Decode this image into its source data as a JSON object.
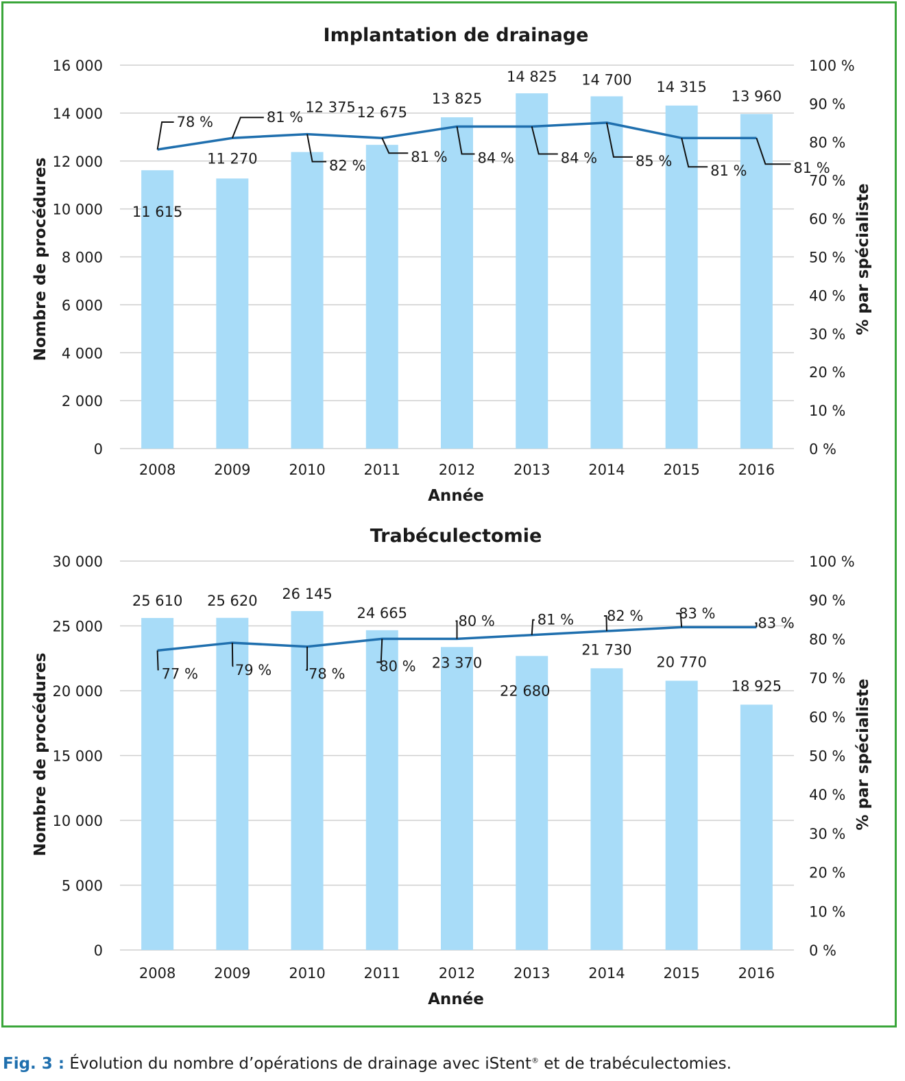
{
  "chart_data": [
    {
      "type": "bar",
      "title": "Implantation de drainage",
      "xlabel": "Année",
      "ylabel": "Nombre de procédures",
      "y2label": "% par spécialiste",
      "categories": [
        "2008",
        "2009",
        "2010",
        "2011",
        "2012",
        "2013",
        "2014",
        "2015",
        "2016"
      ],
      "ylim": [
        0,
        16000
      ],
      "yticks": [
        0,
        2000,
        4000,
        6000,
        8000,
        10000,
        12000,
        14000,
        16000
      ],
      "ytick_labels": [
        "0",
        "2 000",
        "4 000",
        "6 000",
        "8 000",
        "10 000",
        "12 000",
        "14 000",
        "16 000"
      ],
      "y2lim": [
        0,
        100
      ],
      "y2ticks": [
        0,
        10,
        20,
        30,
        40,
        50,
        60,
        70,
        80,
        90,
        100
      ],
      "y2tick_labels": [
        "0 %",
        "10 %",
        "20 %",
        "30 %",
        "40 %",
        "50 %",
        "60 %",
        "70 %",
        "80 %",
        "90 %",
        "100 %"
      ],
      "grid": true,
      "bar_color": "#a8dcf8",
      "line_color": "#1f6fae",
      "values": [
        11615,
        11270,
        12375,
        12675,
        13825,
        14825,
        14700,
        14315,
        13960
      ],
      "value_labels": [
        "11 615",
        "11 270",
        "12 375",
        "12 675",
        "13 825",
        "14 825",
        "14 700",
        "14 315",
        "13 960"
      ],
      "percent": [
        78,
        81,
        82,
        81,
        84,
        84,
        85,
        81,
        81
      ],
      "percent_labels": [
        "78 %",
        "81 %",
        "82 %",
        "81 %",
        "84 %",
        "84 %",
        "85 %",
        "81 %",
        "81 %"
      ]
    },
    {
      "type": "bar",
      "title": "Trabéculectomie",
      "xlabel": "Année",
      "ylabel": "Nombre de procédures",
      "y2label": "% par spécialiste",
      "categories": [
        "2008",
        "2009",
        "2010",
        "2011",
        "2012",
        "2013",
        "2014",
        "2015",
        "2016"
      ],
      "ylim": [
        0,
        30000
      ],
      "yticks": [
        0,
        5000,
        10000,
        15000,
        20000,
        25000,
        30000
      ],
      "ytick_labels": [
        "0",
        "5 000",
        "10 000",
        "15 000",
        "20 000",
        "25 000",
        "30 000"
      ],
      "y2lim": [
        0,
        100
      ],
      "y2ticks": [
        0,
        10,
        20,
        30,
        40,
        50,
        60,
        70,
        80,
        90,
        100
      ],
      "y2tick_labels": [
        "0 %",
        "10 %",
        "20 %",
        "30 %",
        "40 %",
        "50 %",
        "60 %",
        "70 %",
        "80 %",
        "90 %",
        "100 %"
      ],
      "grid": true,
      "bar_color": "#a8dcf8",
      "line_color": "#1f6fae",
      "values": [
        25610,
        25620,
        26145,
        24665,
        23370,
        22680,
        21730,
        20770,
        18925
      ],
      "value_labels": [
        "25 610",
        "25 620",
        "26 145",
        "24 665",
        "23 370",
        "22 680",
        "21 730",
        "20 770",
        "18 925"
      ],
      "percent": [
        77,
        79,
        78,
        80,
        80,
        81,
        82,
        83,
        83
      ],
      "percent_labels": [
        "77 %",
        "79 %",
        "78 %",
        "80 %",
        "80 %",
        "81 %",
        "82 %",
        "83 %",
        "83 %"
      ]
    }
  ],
  "caption": {
    "prefix": "Fig. 3 :",
    "text_before": " Évolution du nombre d’opérations de drainage avec iStent",
    "sup": "®",
    "text_after": " et de trabéculectomies."
  }
}
